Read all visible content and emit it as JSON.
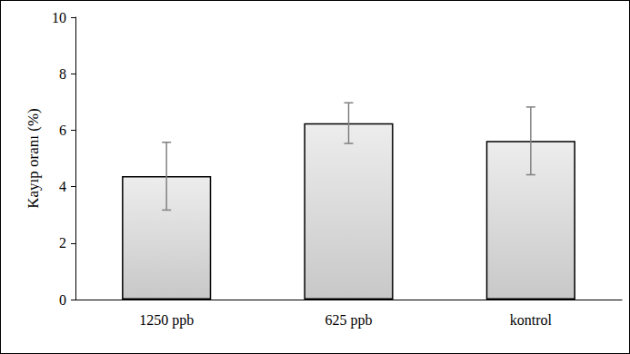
{
  "chart_data": {
    "type": "bar",
    "y_label": "Kayıp oranı (%)",
    "categories": [
      "1250 ppb",
      "625 ppb",
      "kontrol"
    ],
    "values": [
      4.37,
      6.25,
      5.62
    ],
    "errors": [
      1.2,
      0.72,
      1.2
    ],
    "color": "#c8c8c8",
    "ylim": [
      0,
      10
    ],
    "yticks": [
      0,
      2,
      4,
      6,
      8,
      10
    ],
    "grid": false
  }
}
